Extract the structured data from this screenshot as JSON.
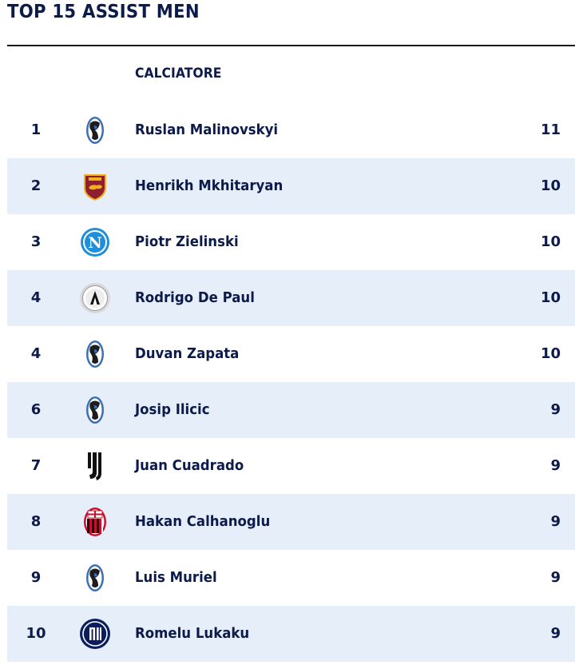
{
  "title": "TOP 15 ASSIST MEN",
  "column_header": "CALCIATORE",
  "rows": [
    {
      "rank": "1",
      "player": "Ruslan Malinovskyi",
      "assists": "11",
      "club_icon": "atalanta-logo-icon"
    },
    {
      "rank": "2",
      "player": "Henrikh Mkhitaryan",
      "assists": "10",
      "club_icon": "roma-logo-icon"
    },
    {
      "rank": "3",
      "player": "Piotr Zielinski",
      "assists": "10",
      "club_icon": "napoli-logo-icon"
    },
    {
      "rank": "4",
      "player": "Rodrigo De Paul",
      "assists": "10",
      "club_icon": "udinese-logo-icon"
    },
    {
      "rank": "4",
      "player": "Duvan Zapata",
      "assists": "10",
      "club_icon": "atalanta-logo-icon"
    },
    {
      "rank": "6",
      "player": "Josip Ilicic",
      "assists": "9",
      "club_icon": "atalanta-logo-icon"
    },
    {
      "rank": "7",
      "player": "Juan Cuadrado",
      "assists": "9",
      "club_icon": "juventus-logo-icon"
    },
    {
      "rank": "8",
      "player": "Hakan Calhanoglu",
      "assists": "9",
      "club_icon": "milan-logo-icon"
    },
    {
      "rank": "9",
      "player": "Luis Muriel",
      "assists": "9",
      "club_icon": "atalanta-logo-icon"
    },
    {
      "rank": "10",
      "player": "Romelu Lukaku",
      "assists": "9",
      "club_icon": "inter-logo-icon"
    }
  ],
  "colors": {
    "text": "#0d1b4b",
    "row_alt": "#e6eefa",
    "rule": "#1a1a1a"
  }
}
